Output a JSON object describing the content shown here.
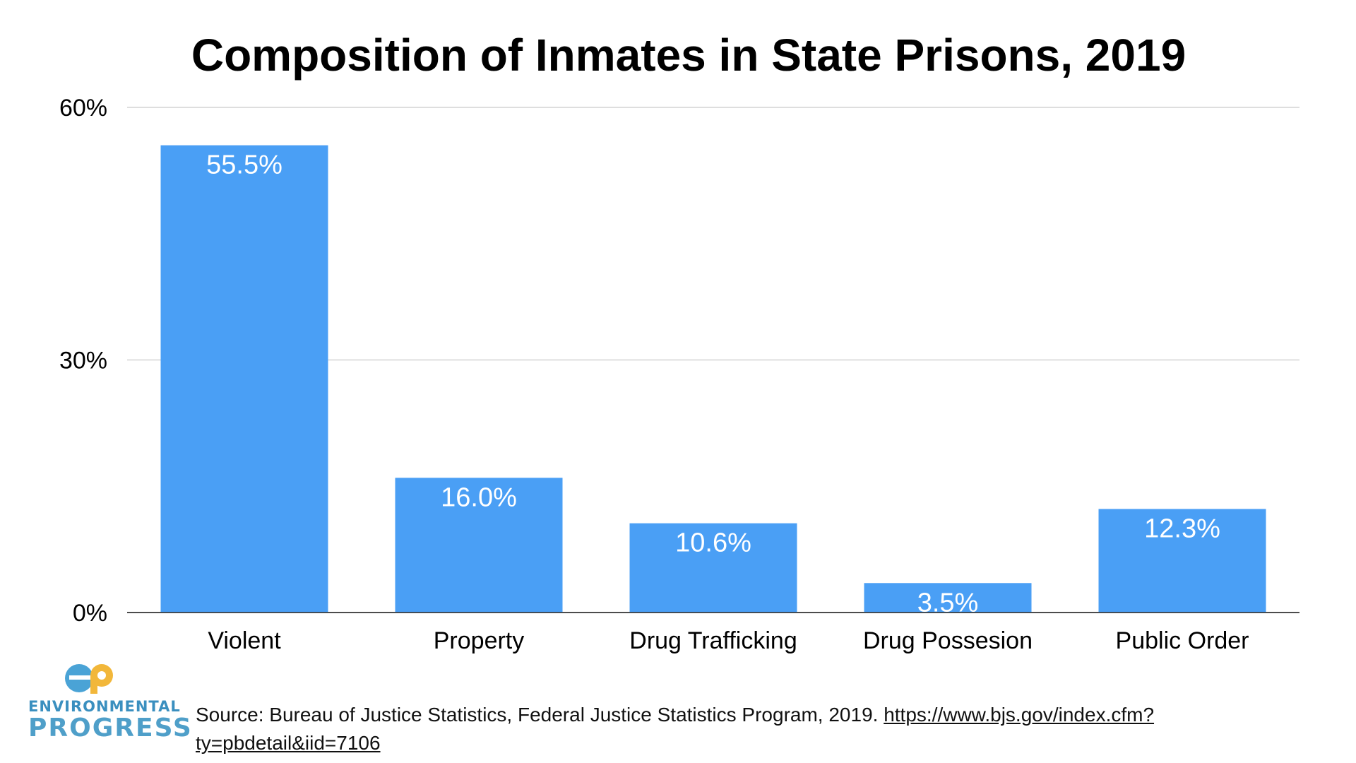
{
  "chart_data": {
    "type": "bar",
    "title": "Composition of Inmates in State Prisons, 2019",
    "categories": [
      "Violent",
      "Property",
      "Drug Trafficking",
      "Drug Possesion",
      "Public Order"
    ],
    "values": [
      55.5,
      16.0,
      10.6,
      3.5,
      12.3
    ],
    "value_labels": [
      "55.5%",
      "16.0%",
      "10.6%",
      "3.5%",
      "12.3%"
    ],
    "ylim": [
      0,
      60
    ],
    "yticks": [
      0,
      30,
      60
    ],
    "ytick_labels": [
      "0%",
      "30%",
      "60%"
    ],
    "xlabel": "",
    "ylabel": "",
    "grid": true,
    "bar_color": "#4a9ff5"
  },
  "logo": {
    "line1": "ENVIRONMENTAL",
    "line2": "PROGRESS",
    "mark_color_blue": "#4aa3d6",
    "mark_color_yellow": "#f2b73a"
  },
  "source": {
    "text": "Source: Bureau of Justice Statistics, Federal Justice Statistics Program, 2019. ",
    "url": "https://www.bjs.gov/index.cfm?ty=pbdetail&iid=7106"
  }
}
